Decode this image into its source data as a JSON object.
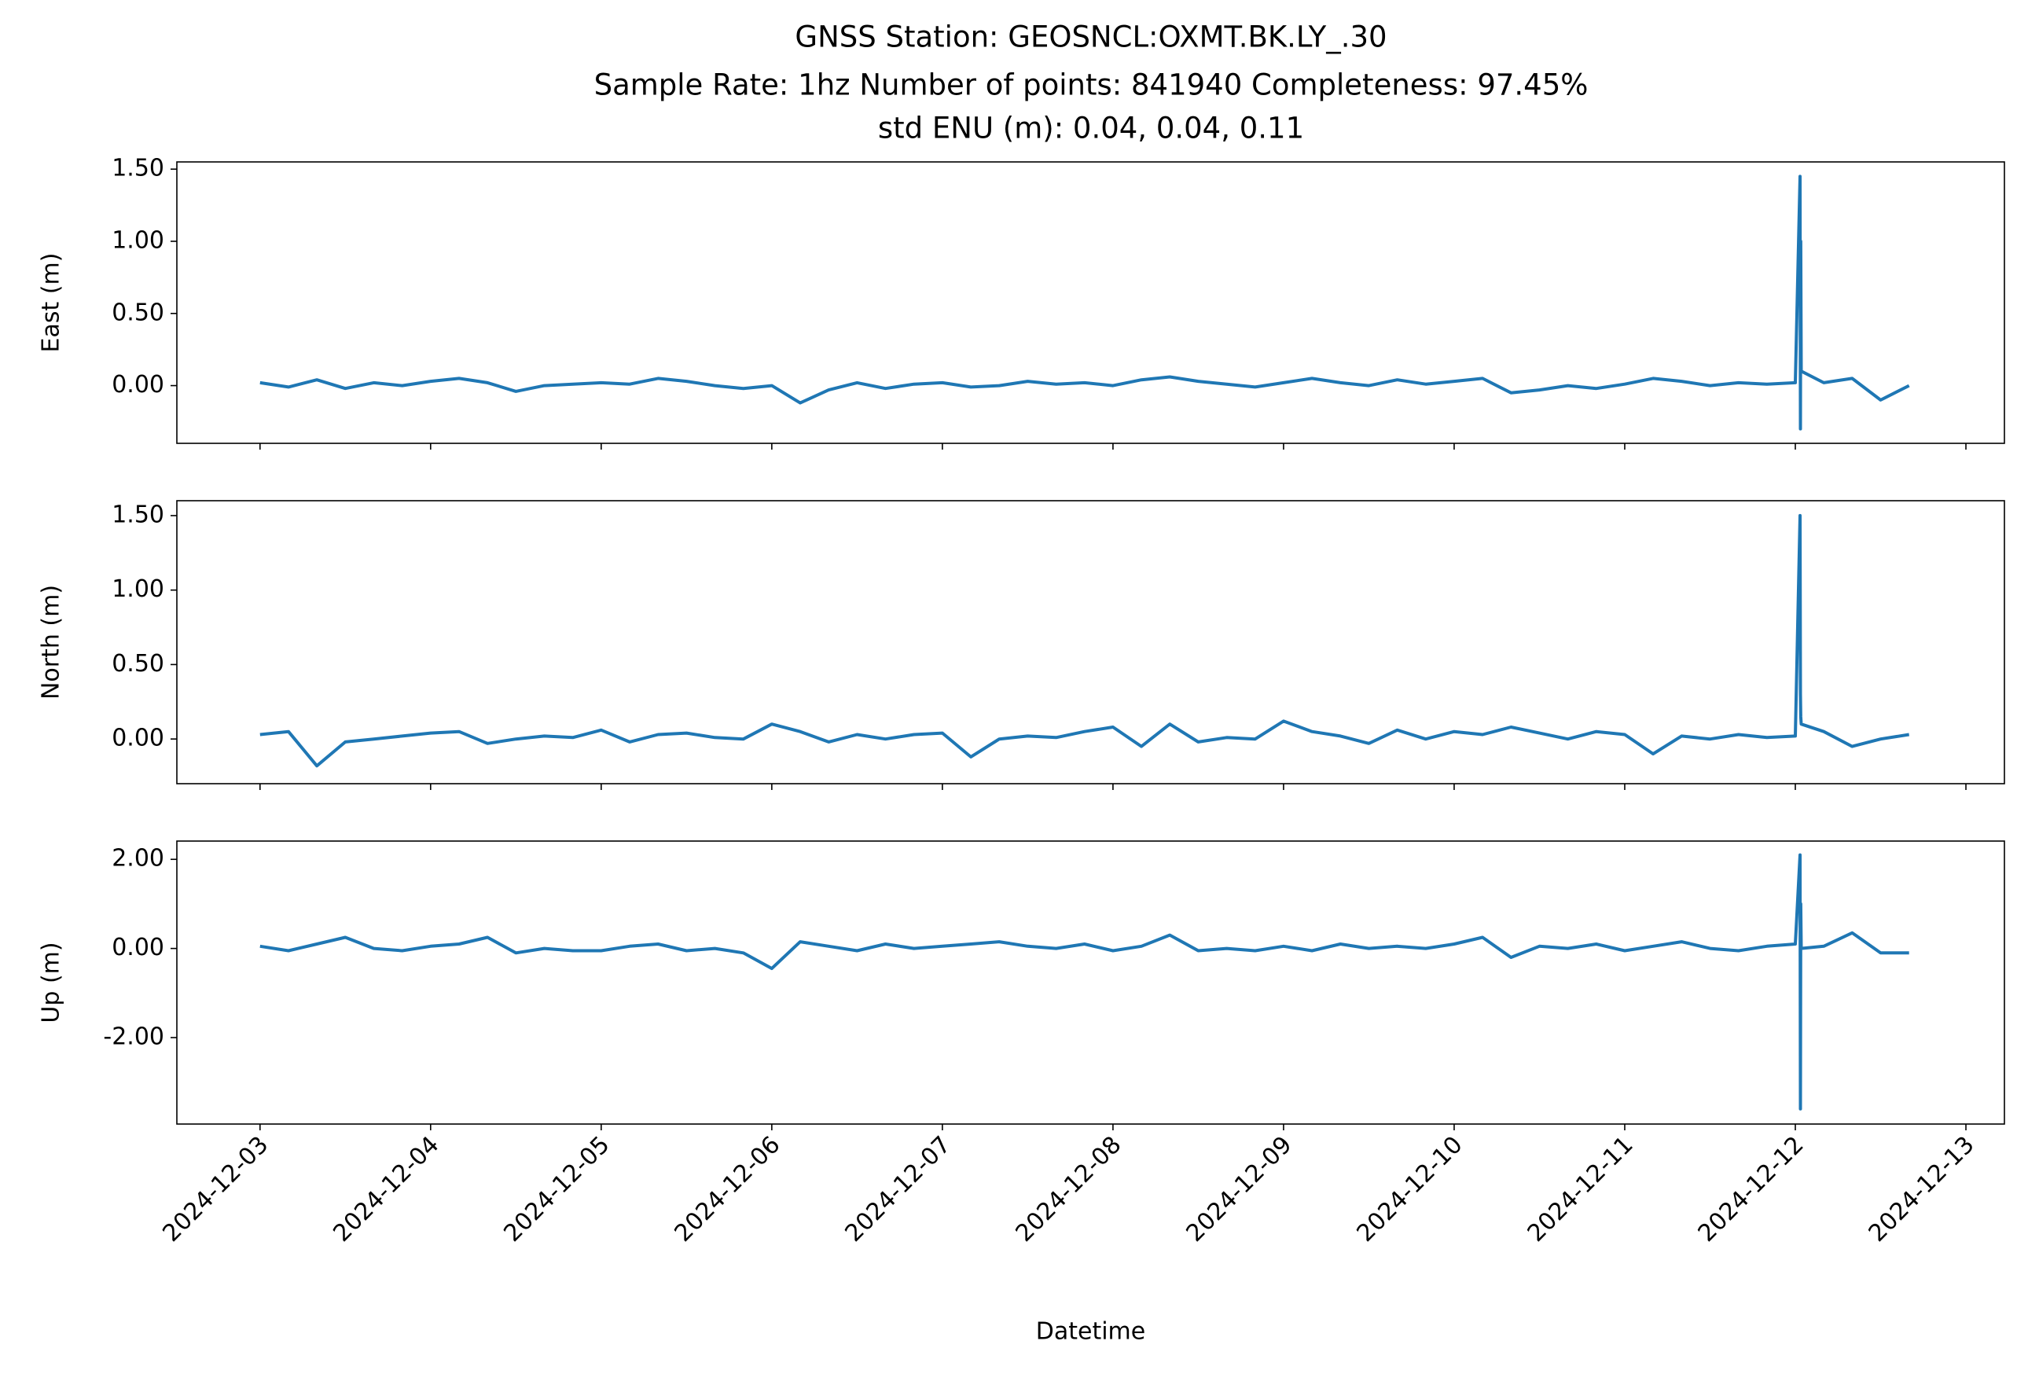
{
  "chart_data": [
    {
      "type": "line",
      "title": [
        "GNSS Station: GEOSNCL:OXMT.BK.LY_.30",
        "Sample Rate: 1hz   Number of points: 841940    Completeness:  97.45%",
        "std ENU (m):  0.04, 0.04, 0.11"
      ],
      "ylabel": "East (m)",
      "color": "#1f77b4",
      "xlim": [
        "2024-12-02T12:18",
        "2024-12-13T05:25"
      ],
      "xticks": [
        "2024-12-03",
        "2024-12-04",
        "2024-12-05",
        "2024-12-06",
        "2024-12-07",
        "2024-12-08",
        "2024-12-09",
        "2024-12-10",
        "2024-12-11",
        "2024-12-12",
        "2024-12-13"
      ],
      "ylim": [
        -0.4,
        1.55
      ],
      "yticks": [
        {
          "value": 0,
          "label": "0.00"
        },
        {
          "value": 0.5,
          "label": "0.50"
        },
        {
          "value": 1,
          "label": "1.00"
        },
        {
          "value": 1.5,
          "label": "1.50"
        }
      ],
      "x": [
        "2024-12-03T00:00",
        "2024-12-03T04:00",
        "2024-12-03T08:00",
        "2024-12-03T12:00",
        "2024-12-03T16:00",
        "2024-12-03T20:00",
        "2024-12-04T00:00",
        "2024-12-04T04:00",
        "2024-12-04T08:00",
        "2024-12-04T12:00",
        "2024-12-04T16:00",
        "2024-12-04T20:00",
        "2024-12-05T00:00",
        "2024-12-05T04:00",
        "2024-12-05T08:00",
        "2024-12-05T12:00",
        "2024-12-05T16:00",
        "2024-12-05T20:00",
        "2024-12-06T00:00",
        "2024-12-06T04:00",
        "2024-12-06T08:00",
        "2024-12-06T12:00",
        "2024-12-06T16:00",
        "2024-12-06T20:00",
        "2024-12-07T00:00",
        "2024-12-07T04:00",
        "2024-12-07T08:00",
        "2024-12-07T12:00",
        "2024-12-07T16:00",
        "2024-12-07T20:00",
        "2024-12-08T00:00",
        "2024-12-08T04:00",
        "2024-12-08T08:00",
        "2024-12-08T12:00",
        "2024-12-08T16:00",
        "2024-12-08T20:00",
        "2024-12-09T00:00",
        "2024-12-09T04:00",
        "2024-12-09T08:00",
        "2024-12-09T12:00",
        "2024-12-09T16:00",
        "2024-12-09T20:00",
        "2024-12-10T00:00",
        "2024-12-10T04:00",
        "2024-12-10T08:00",
        "2024-12-10T12:00",
        "2024-12-10T16:00",
        "2024-12-10T20:00",
        "2024-12-11T00:00",
        "2024-12-11T04:00",
        "2024-12-11T08:00",
        "2024-12-11T12:00",
        "2024-12-11T16:00",
        "2024-12-11T20:00",
        "2024-12-12T00:00",
        "2024-12-12T00:40",
        "2024-12-12T00:43",
        "2024-12-12T00:46",
        "2024-12-12T00:50",
        "2024-12-12T04:00",
        "2024-12-12T08:00",
        "2024-12-12T12:00",
        "2024-12-12T16:00"
      ],
      "values": [
        0.02,
        -0.01,
        0.04,
        -0.02,
        0.02,
        0.0,
        0.03,
        0.05,
        0.02,
        -0.04,
        0.0,
        0.01,
        0.02,
        0.01,
        0.05,
        0.03,
        0.0,
        -0.02,
        0.0,
        -0.12,
        -0.03,
        0.02,
        -0.02,
        0.01,
        0.02,
        -0.01,
        0.0,
        0.03,
        0.01,
        0.02,
        0.0,
        0.04,
        0.06,
        0.03,
        0.01,
        -0.01,
        0.02,
        0.05,
        0.02,
        0.0,
        0.04,
        0.01,
        0.03,
        0.05,
        -0.05,
        -0.03,
        0.0,
        -0.02,
        0.01,
        0.05,
        0.03,
        0.0,
        0.02,
        0.01,
        0.02,
        1.45,
        -0.3,
        1.0,
        0.1,
        0.02,
        0.05,
        -0.1,
        0.0
      ]
    },
    {
      "type": "line",
      "ylabel": "North (m)",
      "color": "#1f77b4",
      "xlim": [
        "2024-12-02T12:18",
        "2024-12-13T05:25"
      ],
      "xticks": [
        "2024-12-03",
        "2024-12-04",
        "2024-12-05",
        "2024-12-06",
        "2024-12-07",
        "2024-12-08",
        "2024-12-09",
        "2024-12-10",
        "2024-12-11",
        "2024-12-12",
        "2024-12-13"
      ],
      "ylim": [
        -0.3,
        1.6
      ],
      "yticks": [
        {
          "value": 0,
          "label": "0.00"
        },
        {
          "value": 0.5,
          "label": "0.50"
        },
        {
          "value": 1,
          "label": "1.00"
        },
        {
          "value": 1.5,
          "label": "1.50"
        }
      ],
      "x": [
        "2024-12-03T00:00",
        "2024-12-03T04:00",
        "2024-12-03T08:00",
        "2024-12-03T12:00",
        "2024-12-03T16:00",
        "2024-12-03T20:00",
        "2024-12-04T00:00",
        "2024-12-04T04:00",
        "2024-12-04T08:00",
        "2024-12-04T12:00",
        "2024-12-04T16:00",
        "2024-12-04T20:00",
        "2024-12-05T00:00",
        "2024-12-05T04:00",
        "2024-12-05T08:00",
        "2024-12-05T12:00",
        "2024-12-05T16:00",
        "2024-12-05T20:00",
        "2024-12-06T00:00",
        "2024-12-06T04:00",
        "2024-12-06T08:00",
        "2024-12-06T12:00",
        "2024-12-06T16:00",
        "2024-12-06T20:00",
        "2024-12-07T00:00",
        "2024-12-07T04:00",
        "2024-12-07T08:00",
        "2024-12-07T12:00",
        "2024-12-07T16:00",
        "2024-12-07T20:00",
        "2024-12-08T00:00",
        "2024-12-08T04:00",
        "2024-12-08T08:00",
        "2024-12-08T12:00",
        "2024-12-08T16:00",
        "2024-12-08T20:00",
        "2024-12-09T00:00",
        "2024-12-09T04:00",
        "2024-12-09T08:00",
        "2024-12-09T12:00",
        "2024-12-09T16:00",
        "2024-12-09T20:00",
        "2024-12-10T00:00",
        "2024-12-10T04:00",
        "2024-12-10T08:00",
        "2024-12-10T12:00",
        "2024-12-10T16:00",
        "2024-12-10T20:00",
        "2024-12-11T00:00",
        "2024-12-11T04:00",
        "2024-12-11T08:00",
        "2024-12-11T12:00",
        "2024-12-11T16:00",
        "2024-12-11T20:00",
        "2024-12-12T00:00",
        "2024-12-12T00:40",
        "2024-12-12T00:43",
        "2024-12-12T00:46",
        "2024-12-12T00:50",
        "2024-12-12T04:00",
        "2024-12-12T08:00",
        "2024-12-12T12:00",
        "2024-12-12T16:00"
      ],
      "values": [
        0.03,
        0.05,
        -0.18,
        -0.02,
        0.0,
        0.02,
        0.04,
        0.05,
        -0.03,
        0.0,
        0.02,
        0.01,
        0.06,
        -0.02,
        0.03,
        0.04,
        0.01,
        0.0,
        0.1,
        0.05,
        -0.02,
        0.03,
        0.0,
        0.03,
        0.04,
        -0.12,
        0.0,
        0.02,
        0.01,
        0.05,
        0.08,
        -0.05,
        0.1,
        -0.02,
        0.01,
        0.0,
        0.12,
        0.05,
        0.02,
        -0.03,
        0.06,
        0.0,
        0.05,
        0.03,
        0.08,
        0.04,
        0.0,
        0.05,
        0.03,
        -0.1,
        0.02,
        0.0,
        0.03,
        0.01,
        0.02,
        1.5,
        0.3,
        0.15,
        0.1,
        0.05,
        -0.05,
        0.0,
        0.03
      ]
    },
    {
      "type": "line",
      "ylabel": "Up (m)",
      "xlabel": "Datetime",
      "color": "#1f77b4",
      "xlim": [
        "2024-12-02T12:18",
        "2024-12-13T05:25"
      ],
      "xticks": [
        "2024-12-03",
        "2024-12-04",
        "2024-12-05",
        "2024-12-06",
        "2024-12-07",
        "2024-12-08",
        "2024-12-09",
        "2024-12-10",
        "2024-12-11",
        "2024-12-12",
        "2024-12-13"
      ],
      "ylim": [
        -3.94,
        2.41
      ],
      "yticks": [
        {
          "value": -2,
          "label": "-2.00"
        },
        {
          "value": 0,
          "label": "0.00"
        },
        {
          "value": 2,
          "label": "2.00"
        }
      ],
      "x": [
        "2024-12-03T00:00",
        "2024-12-03T04:00",
        "2024-12-03T08:00",
        "2024-12-03T12:00",
        "2024-12-03T16:00",
        "2024-12-03T20:00",
        "2024-12-04T00:00",
        "2024-12-04T04:00",
        "2024-12-04T08:00",
        "2024-12-04T12:00",
        "2024-12-04T16:00",
        "2024-12-04T20:00",
        "2024-12-05T00:00",
        "2024-12-05T04:00",
        "2024-12-05T08:00",
        "2024-12-05T12:00",
        "2024-12-05T16:00",
        "2024-12-05T20:00",
        "2024-12-06T00:00",
        "2024-12-06T04:00",
        "2024-12-06T08:00",
        "2024-12-06T12:00",
        "2024-12-06T16:00",
        "2024-12-06T20:00",
        "2024-12-07T00:00",
        "2024-12-07T04:00",
        "2024-12-07T08:00",
        "2024-12-07T12:00",
        "2024-12-07T16:00",
        "2024-12-07T20:00",
        "2024-12-08T00:00",
        "2024-12-08T04:00",
        "2024-12-08T08:00",
        "2024-12-08T12:00",
        "2024-12-08T16:00",
        "2024-12-08T20:00",
        "2024-12-09T00:00",
        "2024-12-09T04:00",
        "2024-12-09T08:00",
        "2024-12-09T12:00",
        "2024-12-09T16:00",
        "2024-12-09T20:00",
        "2024-12-10T00:00",
        "2024-12-10T04:00",
        "2024-12-10T08:00",
        "2024-12-10T12:00",
        "2024-12-10T16:00",
        "2024-12-10T20:00",
        "2024-12-11T00:00",
        "2024-12-11T04:00",
        "2024-12-11T08:00",
        "2024-12-11T12:00",
        "2024-12-11T16:00",
        "2024-12-11T20:00",
        "2024-12-12T00:00",
        "2024-12-12T00:40",
        "2024-12-12T00:43",
        "2024-12-12T00:46",
        "2024-12-12T00:50",
        "2024-12-12T04:00",
        "2024-12-12T08:00",
        "2024-12-12T12:00",
        "2024-12-12T16:00"
      ],
      "values": [
        0.05,
        -0.05,
        0.1,
        0.25,
        0.0,
        -0.05,
        0.05,
        0.1,
        0.25,
        -0.1,
        0.0,
        -0.05,
        -0.05,
        0.05,
        0.1,
        -0.05,
        0.0,
        -0.1,
        -0.45,
        0.15,
        0.05,
        -0.05,
        0.1,
        0.0,
        0.05,
        0.1,
        0.15,
        0.05,
        0.0,
        0.1,
        -0.05,
        0.05,
        0.3,
        -0.05,
        0.0,
        -0.05,
        0.05,
        -0.05,
        0.1,
        0.0,
        0.05,
        0.0,
        0.1,
        0.25,
        -0.2,
        0.05,
        0.0,
        0.1,
        -0.05,
        0.05,
        0.15,
        0.0,
        -0.05,
        0.05,
        0.1,
        2.1,
        -3.6,
        1.0,
        0.0,
        0.05,
        0.35,
        -0.1,
        -0.1
      ]
    }
  ]
}
